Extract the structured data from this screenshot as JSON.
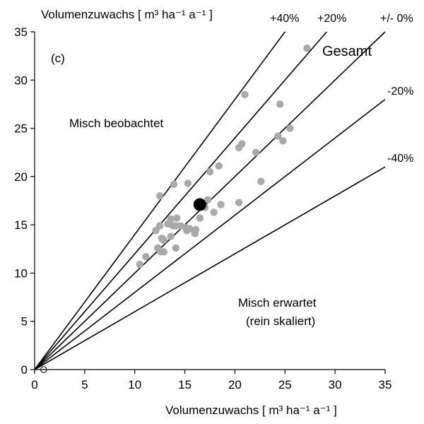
{
  "chart_data": {
    "type": "scatter",
    "panel_label": "(c)",
    "xlabel": "Volumenzuwachs  [ m³ ha⁻¹ a⁻¹ ]",
    "ylabel": "Volumenzuwachs  [ m³ ha⁻¹ a⁻¹ ]",
    "xlim": [
      0,
      35
    ],
    "ylim": [
      0,
      35
    ],
    "xticks": [
      0,
      5,
      10,
      15,
      20,
      25,
      30,
      35
    ],
    "yticks": [
      0,
      5,
      10,
      15,
      20,
      25,
      30,
      35
    ],
    "grid": false,
    "reference_lines": [
      {
        "label": "+40%",
        "slope": 1.4
      },
      {
        "label": "+20%",
        "slope": 1.2
      },
      {
        "label": "+/- 0%",
        "slope": 1.0
      },
      {
        "label": "-20%",
        "slope": 0.8
      },
      {
        "label": "-40%",
        "slope": 0.6
      }
    ],
    "annotations": {
      "upper_left": "Misch beobachtet",
      "lower_right_line1": "Misch erwartet",
      "lower_right_line2": "(rein skaliert)"
    },
    "series": [
      {
        "color": "#a9a9a9",
        "points": [
          [
            10.5,
            10.9
          ],
          [
            11.1,
            11.7
          ],
          [
            12.1,
            14.4
          ],
          [
            12.3,
            12.6
          ],
          [
            12.6,
            12.2
          ],
          [
            12.9,
            12.2
          ],
          [
            12.5,
            14.9
          ],
          [
            12.7,
            13.6
          ],
          [
            12.9,
            13.4
          ],
          [
            12.5,
            18.0
          ],
          [
            13.3,
            15.1
          ],
          [
            13.6,
            15.6
          ],
          [
            13.8,
            14.9
          ],
          [
            13.6,
            13.8
          ],
          [
            14.1,
            14.9
          ],
          [
            14.2,
            15.7
          ],
          [
            14.1,
            12.6
          ],
          [
            14.6,
            14.9
          ],
          [
            15.1,
            14.7
          ],
          [
            15.2,
            14.4
          ],
          [
            15.5,
            14.6
          ],
          [
            16.0,
            14.1
          ],
          [
            16.1,
            14.5
          ],
          [
            13.9,
            19.2
          ],
          [
            15.3,
            19.3
          ],
          [
            16.5,
            15.7
          ],
          [
            17.0,
            16.8
          ],
          [
            17.3,
            17.6
          ],
          [
            17.9,
            16.3
          ],
          [
            18.6,
            17.1
          ],
          [
            17.5,
            20.5
          ],
          [
            18.4,
            21.1
          ],
          [
            20.4,
            17.3
          ],
          [
            20.4,
            23.0
          ],
          [
            20.7,
            23.4
          ],
          [
            22.1,
            22.5
          ],
          [
            22.6,
            19.5
          ],
          [
            21.0,
            28.5
          ],
          [
            24.3,
            24.2
          ],
          [
            24.8,
            23.7
          ],
          [
            25.5,
            25.0
          ],
          [
            24.5,
            27.5
          ],
          [
            27.2,
            33.3
          ]
        ]
      }
    ],
    "highlight_points": [
      {
        "label": "Gesamt",
        "x": 27.2,
        "y": 33.3
      },
      {
        "x": 16.5,
        "y": 17.1,
        "color": "#000000"
      }
    ],
    "open_point": {
      "x": 0.9,
      "y": 0.0
    }
  }
}
